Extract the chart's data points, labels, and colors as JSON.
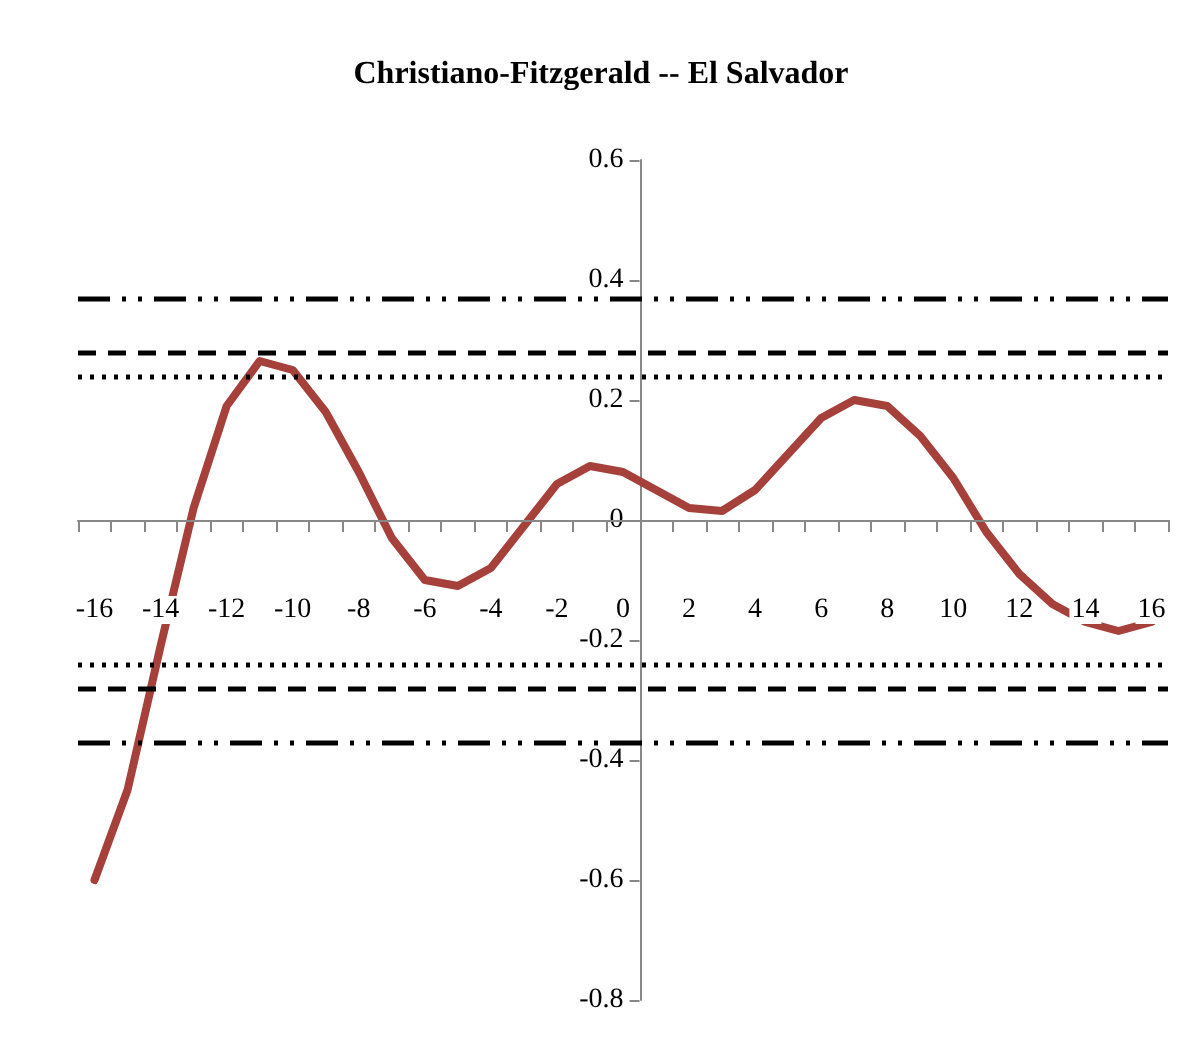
{
  "chart_data": {
    "type": "line",
    "title": "Christiano-Fitzgerald -- El Salvador",
    "categories": [
      "-16",
      null,
      "-14",
      null,
      "-12",
      null,
      "-10",
      null,
      "-8",
      null,
      "-6",
      null,
      "-4",
      null,
      "-2",
      null,
      "0",
      null,
      "2",
      null,
      "4",
      null,
      "6",
      null,
      "8",
      null,
      "10",
      null,
      "12",
      null,
      "14",
      null,
      "16"
    ],
    "series": [
      {
        "color": "#a5403b",
        "values": [
          -0.6,
          -0.45,
          -0.21,
          0.02,
          0.19,
          0.265,
          0.25,
          0.18,
          0.08,
          -0.03,
          -0.1,
          -0.11,
          -0.08,
          -0.01,
          0.06,
          0.09,
          0.08,
          0.05,
          0.02,
          0.015,
          0.05,
          0.11,
          0.17,
          0.2,
          0.19,
          0.14,
          0.07,
          -0.02,
          -0.09,
          -0.14,
          -0.17,
          -0.185,
          -0.17
        ]
      }
    ],
    "ylim": [
      -0.8,
      0.6
    ],
    "yticks": [
      -0.8,
      -0.6,
      -0.4,
      -0.2,
      0,
      0.2,
      0.4,
      0.6
    ],
    "marker": "none",
    "line_style": "solid",
    "ref_lines": [
      {
        "axis": "y",
        "value": 0.37,
        "line_style": "dashdot",
        "color": "#000000"
      },
      {
        "axis": "y",
        "value": 0.28,
        "line_style": "dashed",
        "color": "#000000"
      },
      {
        "axis": "y",
        "value": 0.24,
        "line_style": "dotted",
        "color": "#000000"
      },
      {
        "axis": "y",
        "value": -0.24,
        "line_style": "dotted",
        "color": "#000000"
      },
      {
        "axis": "y",
        "value": -0.28,
        "line_style": "dashed",
        "color": "#000000"
      },
      {
        "axis": "y",
        "value": -0.37,
        "line_style": "dashdot",
        "color": "#000000"
      }
    ]
  }
}
